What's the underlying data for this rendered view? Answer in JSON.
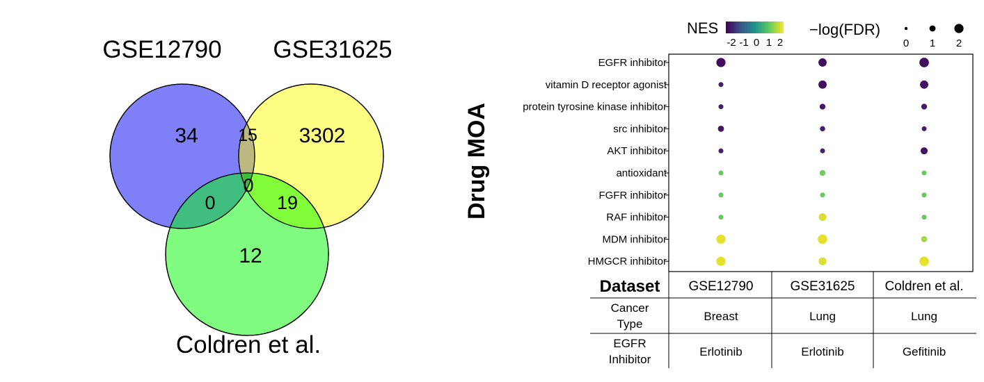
{
  "chart_data": [
    {
      "type": "venn",
      "sets": [
        "GSE12790",
        "GSE31625",
        "Coldren et al."
      ],
      "colors": {
        "GSE12790": "#7f7ff8",
        "GSE31625": "#fdfd83",
        "Coldren et al.": "#80fd80"
      },
      "regions": {
        "only_a": "34",
        "a_b": "15",
        "only_b": "3302",
        "a_c": "0",
        "a_b_c": "0",
        "b_c": "19",
        "only_c": "12"
      }
    },
    {
      "type": "scatter",
      "ylabel": "Drug MOA",
      "categories": [
        "EGFR inhibitor",
        "vitamin D receptor agonist",
        "protein tyrosine kinase inhibitor",
        "src inhibitor",
        "AKT inhibitor",
        "antioxidant",
        "FGFR inhibitor",
        "RAF inhibitor",
        "MDM inhibitor",
        "HMGCR inhibitor"
      ],
      "datasets": [
        "GSE12790",
        "GSE31625",
        "Coldren et al."
      ],
      "color_legend": {
        "title": "NES",
        "ticks": [
          "-2",
          "-1",
          "0",
          "1",
          "2"
        ],
        "range": [
          -2.5,
          2.5
        ]
      },
      "size_legend": {
        "title": "−log(FDR)",
        "ticks": [
          "0",
          "1",
          "2"
        ]
      },
      "points": [
        {
          "category": "EGFR inhibitor",
          "dataset": "GSE12790",
          "nes": -2.3,
          "mlogfdr": 2.0
        },
        {
          "category": "EGFR inhibitor",
          "dataset": "GSE31625",
          "nes": -2.3,
          "mlogfdr": 1.7
        },
        {
          "category": "EGFR inhibitor",
          "dataset": "Coldren et al.",
          "nes": -2.3,
          "mlogfdr": 2.1
        },
        {
          "category": "vitamin D receptor agonist",
          "dataset": "GSE12790",
          "nes": -2.0,
          "mlogfdr": 0.6
        },
        {
          "category": "vitamin D receptor agonist",
          "dataset": "GSE31625",
          "nes": -2.3,
          "mlogfdr": 1.7
        },
        {
          "category": "vitamin D receptor agonist",
          "dataset": "Coldren et al.",
          "nes": -2.3,
          "mlogfdr": 1.7
        },
        {
          "category": "protein tyrosine kinase inhibitor",
          "dataset": "GSE12790",
          "nes": -2.0,
          "mlogfdr": 0.6
        },
        {
          "category": "protein tyrosine kinase inhibitor",
          "dataset": "GSE31625",
          "nes": -2.1,
          "mlogfdr": 0.9
        },
        {
          "category": "protein tyrosine kinase inhibitor",
          "dataset": "Coldren et al.",
          "nes": -2.1,
          "mlogfdr": 0.9
        },
        {
          "category": "src inhibitor",
          "dataset": "GSE12790",
          "nes": -2.2,
          "mlogfdr": 1.0
        },
        {
          "category": "src inhibitor",
          "dataset": "GSE31625",
          "nes": -2.0,
          "mlogfdr": 0.7
        },
        {
          "category": "src inhibitor",
          "dataset": "Coldren et al.",
          "nes": -2.0,
          "mlogfdr": 0.6
        },
        {
          "category": "AKT inhibitor",
          "dataset": "GSE12790",
          "nes": -2.0,
          "mlogfdr": 0.6
        },
        {
          "category": "AKT inhibitor",
          "dataset": "GSE31625",
          "nes": -2.0,
          "mlogfdr": 0.6
        },
        {
          "category": "AKT inhibitor",
          "dataset": "Coldren et al.",
          "nes": -2.2,
          "mlogfdr": 1.3
        },
        {
          "category": "antioxidant",
          "dataset": "GSE12790",
          "nes": 1.3,
          "mlogfdr": 0.6
        },
        {
          "category": "antioxidant",
          "dataset": "GSE31625",
          "nes": 1.4,
          "mlogfdr": 0.9
        },
        {
          "category": "antioxidant",
          "dataset": "Coldren et al.",
          "nes": 1.3,
          "mlogfdr": 0.6
        },
        {
          "category": "FGFR inhibitor",
          "dataset": "GSE12790",
          "nes": 1.3,
          "mlogfdr": 0.6
        },
        {
          "category": "FGFR inhibitor",
          "dataset": "GSE31625",
          "nes": 1.3,
          "mlogfdr": 0.6
        },
        {
          "category": "FGFR inhibitor",
          "dataset": "Coldren et al.",
          "nes": 1.3,
          "mlogfdr": 0.6
        },
        {
          "category": "RAF inhibitor",
          "dataset": "GSE12790",
          "nes": 1.3,
          "mlogfdr": 0.6
        },
        {
          "category": "RAF inhibitor",
          "dataset": "GSE31625",
          "nes": 2.2,
          "mlogfdr": 1.5
        },
        {
          "category": "RAF inhibitor",
          "dataset": "Coldren et al.",
          "nes": 1.3,
          "mlogfdr": 0.6
        },
        {
          "category": "MDM inhibitor",
          "dataset": "GSE12790",
          "nes": 2.3,
          "mlogfdr": 2.0
        },
        {
          "category": "MDM inhibitor",
          "dataset": "GSE31625",
          "nes": 2.3,
          "mlogfdr": 2.1
        },
        {
          "category": "MDM inhibitor",
          "dataset": "Coldren et al.",
          "nes": 1.8,
          "mlogfdr": 1.0
        },
        {
          "category": "HMGCR inhibitor",
          "dataset": "GSE12790",
          "nes": 2.3,
          "mlogfdr": 2.0
        },
        {
          "category": "HMGCR inhibitor",
          "dataset": "GSE31625",
          "nes": 2.2,
          "mlogfdr": 1.6
        },
        {
          "category": "HMGCR inhibitor",
          "dataset": "Coldren et al.",
          "nes": 2.3,
          "mlogfdr": 2.1
        }
      ]
    }
  ],
  "table": {
    "header_label": "Dataset",
    "columns": [
      "GSE12790",
      "GSE31625",
      "Coldren et al."
    ],
    "rows": [
      {
        "label_lines": [
          "Cancer",
          "Type"
        ],
        "cells": [
          "Breast",
          "Lung",
          "Lung"
        ]
      },
      {
        "label_lines": [
          "EGFR",
          "Inhibitor"
        ],
        "cells": [
          "Erlotinib",
          "Erlotinib",
          "Gefitinib"
        ]
      }
    ]
  }
}
